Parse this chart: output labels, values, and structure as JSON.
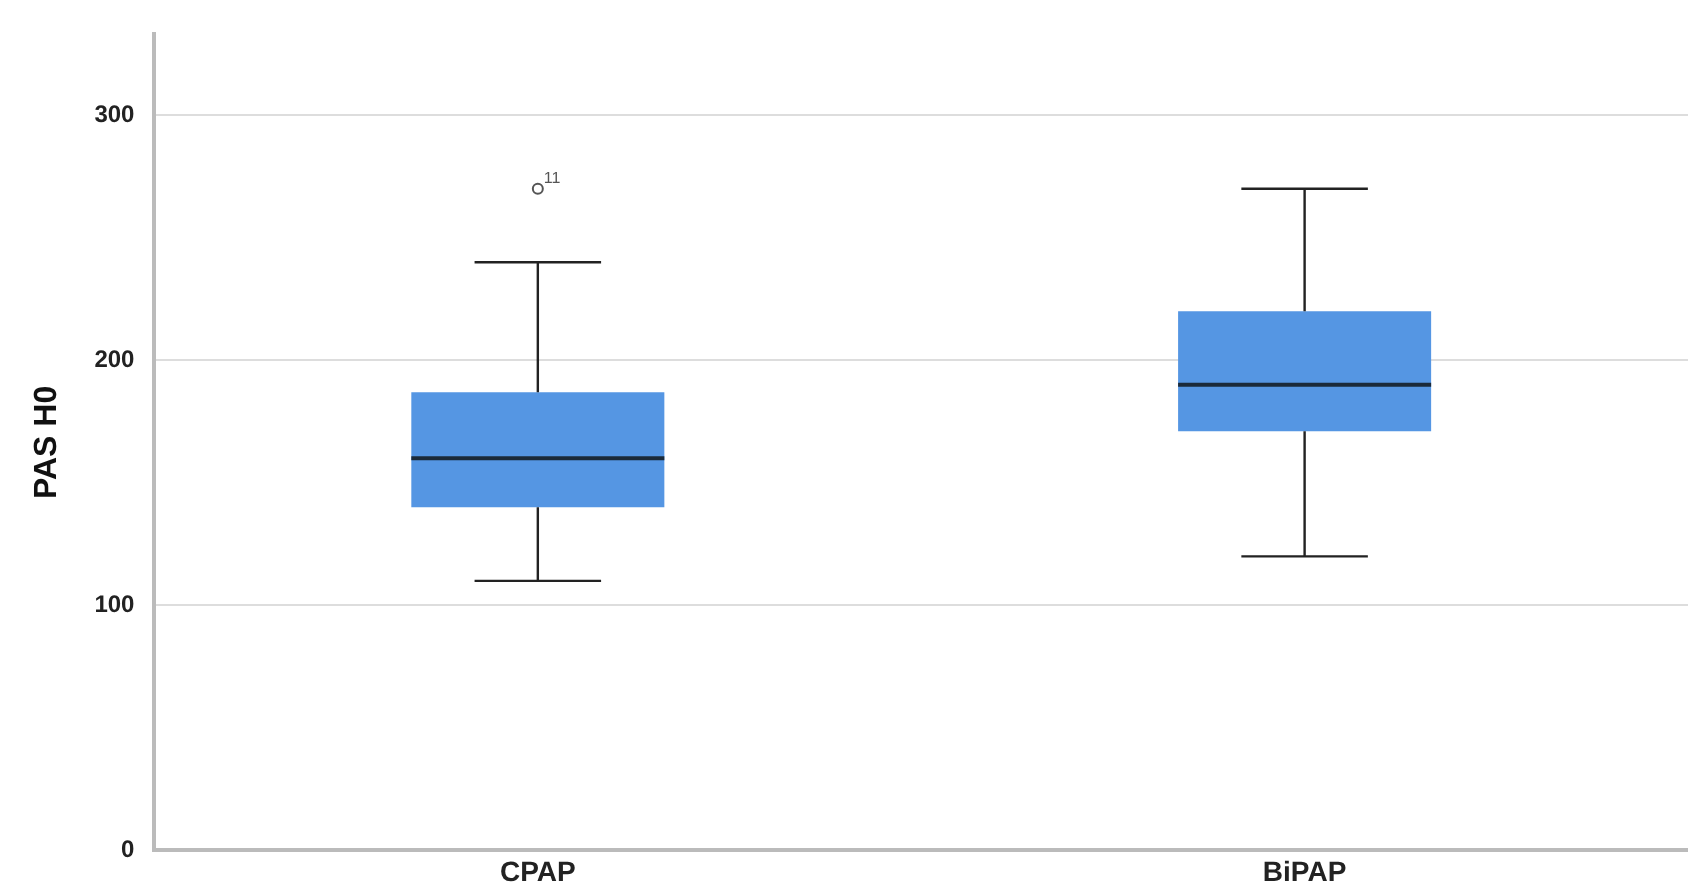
{
  "chart_data": {
    "type": "box",
    "ylabel": "PAS H0",
    "categories": [
      "CPAP",
      "BiPAP"
    ],
    "color": "#5596e3",
    "boxes": [
      {
        "low": 110,
        "q1": 140,
        "median": 160,
        "q3": 187,
        "high": 240,
        "outliers": [
          270
        ]
      },
      {
        "low": 120,
        "q1": 171,
        "median": 190,
        "q3": 220,
        "high": 270
      }
    ],
    "ylim": [
      0,
      333
    ],
    "yticks": [
      0,
      100,
      200,
      300
    ],
    "grid": "y",
    "legend": false,
    "annotations": [
      "11"
    ]
  }
}
